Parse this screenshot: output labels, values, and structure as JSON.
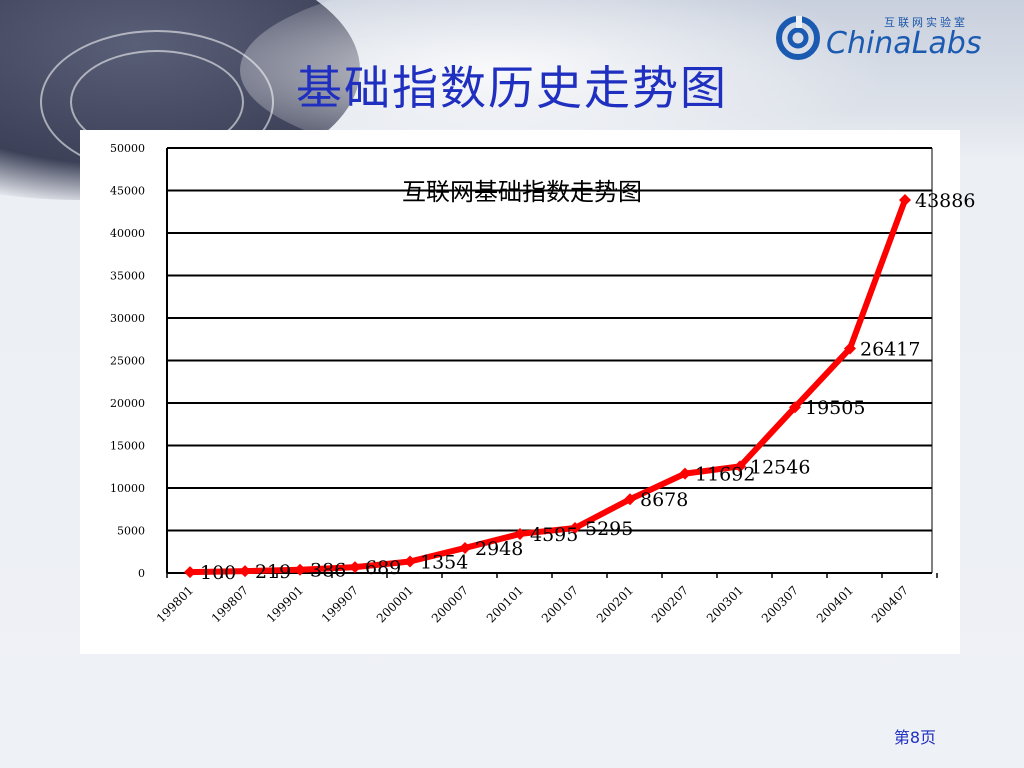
{
  "slide": {
    "title": "基础指数历史走势图",
    "page_label": "第8页"
  },
  "logo": {
    "tagline": "互联网实验室",
    "brand": "ChinaLabs"
  },
  "colors": {
    "title": "#1f2fbf",
    "line": "#ff0000",
    "gridline": "#000000",
    "chart_background": "#ffffff"
  },
  "chart_data": {
    "type": "line",
    "title": "互联网基础指数走势图",
    "xlabel": "",
    "ylabel": "",
    "ylim": [
      0,
      50000
    ],
    "y_ticks": [
      0,
      5000,
      10000,
      15000,
      20000,
      25000,
      30000,
      35000,
      40000,
      45000,
      50000
    ],
    "x_tick_labels": [
      "199801",
      "199807",
      "199901",
      "199907",
      "200001",
      "200007",
      "200101",
      "200107",
      "200201",
      "200207",
      "200301",
      "200307",
      "200401",
      "200407"
    ],
    "grid": "horizontal",
    "legend": "none",
    "series": [
      {
        "name": "",
        "color": "#ff0000",
        "values": [
          100,
          219,
          386,
          689,
          1354,
          2948,
          4595,
          5295,
          8678,
          11692,
          12546,
          19505,
          26417,
          43886
        ],
        "data_labels": [
          "100",
          "219",
          "386",
          "689",
          "1354",
          "2948",
          "4595",
          "5295",
          "8678",
          "11692",
          "12546",
          "19505",
          "26417",
          "43886"
        ]
      }
    ]
  }
}
